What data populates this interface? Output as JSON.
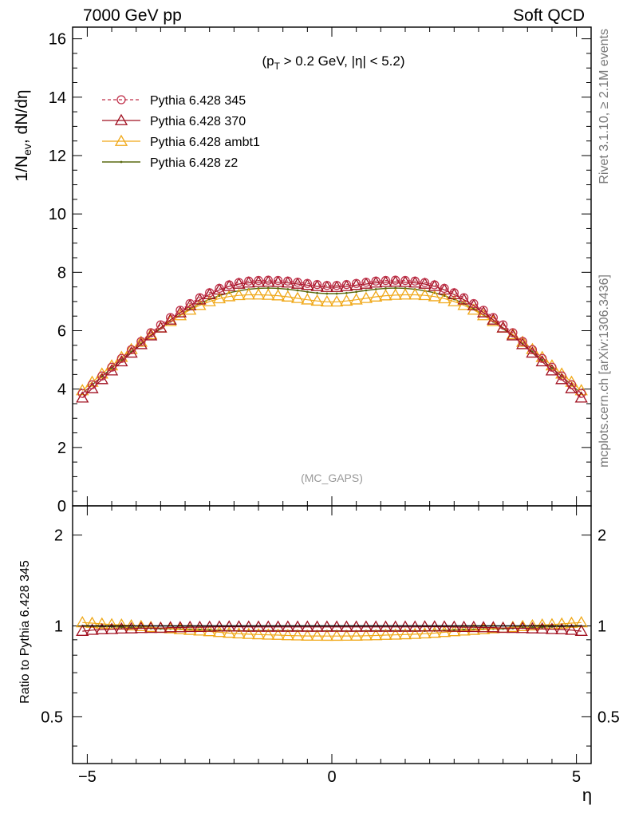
{
  "header": {
    "left": "7000 GeV pp",
    "right": "Soft QCD"
  },
  "side_text": {
    "rivet": "Rivet 3.1.10, ≥ 2.1M events",
    "mcplots": "mcplots.cern.ch [arXiv:1306.3436]"
  },
  "watermark": "(MC_GAPS)",
  "colors": {
    "pythia_345": "#c0304a",
    "pythia_370": "#a01020",
    "pythia_ambt1": "#f0a818",
    "pythia_z2": "#5a6a10"
  },
  "chart_data": [
    {
      "type": "line",
      "panel": "main",
      "ylabel": "1/N_ev, dN/dη",
      "annotation": "(p_T > 0.2 GeV, |η| < 5.2)",
      "xlim": [
        -5.3,
        5.3
      ],
      "ylim": [
        0,
        16.4
      ],
      "yticks": [
        0,
        2,
        4,
        6,
        8,
        10,
        12,
        14,
        16
      ],
      "legend_position": "top-left",
      "x": [
        -5.1,
        -4.9,
        -4.7,
        -4.5,
        -4.3,
        -4.1,
        -3.9,
        -3.7,
        -3.5,
        -3.3,
        -3.1,
        -2.9,
        -2.7,
        -2.5,
        -2.3,
        -2.1,
        -1.9,
        -1.7,
        -1.5,
        -1.3,
        -1.1,
        -0.9,
        -0.7,
        -0.5,
        -0.3,
        -0.1,
        0.1,
        0.3,
        0.5,
        0.7,
        0.9,
        1.1,
        1.3,
        1.5,
        1.7,
        1.9,
        2.1,
        2.3,
        2.5,
        2.7,
        2.9,
        3.1,
        3.3,
        3.5,
        3.7,
        3.9,
        4.1,
        4.3,
        4.5,
        4.7,
        4.9,
        5.1
      ],
      "series": [
        {
          "name": "Pythia 6.428 345",
          "values": [
            3.85,
            4.15,
            4.45,
            4.75,
            5.05,
            5.35,
            5.63,
            5.93,
            6.2,
            6.45,
            6.7,
            6.93,
            7.13,
            7.3,
            7.45,
            7.57,
            7.65,
            7.7,
            7.72,
            7.73,
            7.72,
            7.7,
            7.66,
            7.62,
            7.58,
            7.55,
            7.55,
            7.58,
            7.62,
            7.66,
            7.7,
            7.72,
            7.73,
            7.72,
            7.7,
            7.65,
            7.57,
            7.45,
            7.3,
            7.13,
            6.93,
            6.7,
            6.45,
            6.2,
            5.93,
            5.63,
            5.35,
            5.05,
            4.75,
            4.45,
            4.15,
            3.85
          ]
        },
        {
          "name": "Pythia 6.428 370",
          "values": [
            3.7,
            4.02,
            4.33,
            4.63,
            4.94,
            5.24,
            5.53,
            5.83,
            6.1,
            6.37,
            6.62,
            6.86,
            7.06,
            7.24,
            7.4,
            7.52,
            7.6,
            7.64,
            7.66,
            7.67,
            7.66,
            7.64,
            7.6,
            7.56,
            7.52,
            7.49,
            7.49,
            7.52,
            7.56,
            7.6,
            7.64,
            7.66,
            7.67,
            7.66,
            7.64,
            7.6,
            7.52,
            7.4,
            7.24,
            7.06,
            6.86,
            6.62,
            6.37,
            6.1,
            5.83,
            5.53,
            5.24,
            4.94,
            4.63,
            4.33,
            4.02,
            3.7
          ]
        },
        {
          "name": "Pythia 6.428 ambt1",
          "values": [
            3.95,
            4.24,
            4.52,
            4.8,
            5.09,
            5.36,
            5.61,
            5.87,
            6.1,
            6.32,
            6.52,
            6.71,
            6.87,
            7.0,
            7.1,
            7.17,
            7.21,
            7.23,
            7.23,
            7.22,
            7.2,
            7.16,
            7.11,
            7.06,
            7.02,
            6.99,
            6.99,
            7.02,
            7.06,
            7.11,
            7.16,
            7.2,
            7.22,
            7.23,
            7.23,
            7.21,
            7.17,
            7.1,
            7.0,
            6.87,
            6.71,
            6.52,
            6.32,
            6.1,
            5.87,
            5.61,
            5.36,
            5.09,
            4.8,
            4.52,
            4.24,
            3.95
          ]
        },
        {
          "name": "Pythia 6.428 z2",
          "values": [
            3.85,
            4.14,
            4.43,
            4.72,
            5.0,
            5.28,
            5.55,
            5.82,
            6.07,
            6.31,
            6.54,
            6.75,
            6.93,
            7.08,
            7.2,
            7.3,
            7.37,
            7.42,
            7.45,
            7.46,
            7.45,
            7.42,
            7.38,
            7.33,
            7.29,
            7.27,
            7.27,
            7.29,
            7.33,
            7.38,
            7.42,
            7.45,
            7.46,
            7.45,
            7.42,
            7.37,
            7.3,
            7.2,
            7.08,
            6.93,
            6.75,
            6.54,
            6.31,
            6.07,
            5.82,
            5.55,
            5.28,
            5.0,
            4.72,
            4.43,
            4.14,
            3.85
          ]
        }
      ]
    },
    {
      "type": "line",
      "panel": "ratio",
      "ylabel": "Ratio to Pythia 6.428 345",
      "xlabel": "η",
      "xlim": [
        -5.3,
        5.3
      ],
      "ylim": [
        0.35,
        2.5
      ],
      "yscale": "log",
      "yticks": [
        0.5,
        1,
        2
      ],
      "xticks": [
        -5,
        0,
        5
      ]
    }
  ]
}
